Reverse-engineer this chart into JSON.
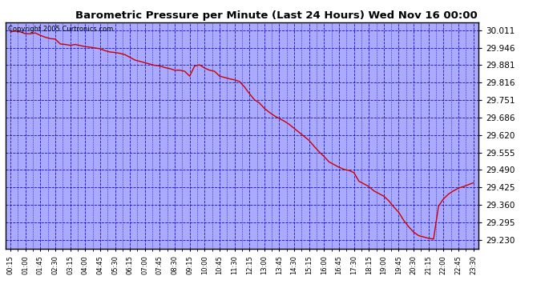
{
  "title": "Barometric Pressure per Minute (Last 24 Hours) Wed Nov 16 00:00",
  "copyright": "Copyright 2005 Curtronics.com",
  "yticks": [
    29.23,
    29.295,
    29.36,
    29.425,
    29.49,
    29.555,
    29.62,
    29.686,
    29.751,
    29.816,
    29.881,
    29.946,
    30.011
  ],
  "ylim": [
    29.195,
    30.04
  ],
  "plot_bg_color": "#aaaaff",
  "line_color": "#cc0000",
  "grid_color": "#0000cc",
  "xtick_labels": [
    "00:15",
    "01:00",
    "01:45",
    "02:30",
    "03:15",
    "04:00",
    "04:45",
    "05:30",
    "06:15",
    "07:00",
    "07:45",
    "08:30",
    "09:15",
    "10:00",
    "10:45",
    "11:30",
    "12:15",
    "13:00",
    "13:45",
    "14:30",
    "15:15",
    "16:00",
    "16:45",
    "17:30",
    "18:15",
    "19:00",
    "19:45",
    "20:30",
    "21:15",
    "22:00",
    "22:45",
    "23:30"
  ],
  "pressure_data": [
    [
      0.25,
      30.005
    ],
    [
      0.5,
      30.008
    ],
    [
      0.75,
      30.005
    ],
    [
      1.0,
      29.998
    ],
    [
      1.25,
      29.998
    ],
    [
      1.5,
      30.001
    ],
    [
      1.75,
      29.992
    ],
    [
      2.0,
      29.985
    ],
    [
      2.25,
      29.98
    ],
    [
      2.5,
      29.978
    ],
    [
      2.75,
      29.96
    ],
    [
      3.0,
      29.958
    ],
    [
      3.25,
      29.955
    ],
    [
      3.5,
      29.958
    ],
    [
      3.75,
      29.954
    ],
    [
      4.0,
      29.95
    ],
    [
      4.25,
      29.948
    ],
    [
      4.5,
      29.945
    ],
    [
      4.75,
      29.942
    ],
    [
      5.0,
      29.935
    ],
    [
      5.25,
      29.93
    ],
    [
      5.5,
      29.928
    ],
    [
      5.75,
      29.925
    ],
    [
      6.0,
      29.92
    ],
    [
      6.25,
      29.91
    ],
    [
      6.5,
      29.9
    ],
    [
      6.75,
      29.895
    ],
    [
      7.0,
      29.89
    ],
    [
      7.25,
      29.885
    ],
    [
      7.5,
      29.88
    ],
    [
      7.75,
      29.878
    ],
    [
      8.0,
      29.872
    ],
    [
      8.25,
      29.868
    ],
    [
      8.5,
      29.862
    ],
    [
      8.75,
      29.862
    ],
    [
      9.0,
      29.858
    ],
    [
      9.25,
      29.84
    ],
    [
      9.5,
      29.878
    ],
    [
      9.75,
      29.882
    ],
    [
      10.0,
      29.87
    ],
    [
      10.25,
      29.862
    ],
    [
      10.5,
      29.858
    ],
    [
      10.75,
      29.84
    ],
    [
      11.0,
      29.835
    ],
    [
      11.25,
      29.83
    ],
    [
      11.5,
      29.826
    ],
    [
      11.75,
      29.82
    ],
    [
      12.0,
      29.8
    ],
    [
      12.25,
      29.775
    ],
    [
      12.5,
      29.752
    ],
    [
      12.75,
      29.74
    ],
    [
      13.0,
      29.72
    ],
    [
      13.25,
      29.705
    ],
    [
      13.5,
      29.692
    ],
    [
      13.75,
      29.682
    ],
    [
      14.0,
      29.672
    ],
    [
      14.25,
      29.66
    ],
    [
      14.5,
      29.645
    ],
    [
      14.75,
      29.63
    ],
    [
      15.0,
      29.615
    ],
    [
      15.25,
      29.6
    ],
    [
      15.5,
      29.578
    ],
    [
      15.75,
      29.558
    ],
    [
      16.0,
      29.54
    ],
    [
      16.25,
      29.52
    ],
    [
      16.5,
      29.51
    ],
    [
      16.75,
      29.5
    ],
    [
      17.0,
      29.492
    ],
    [
      17.25,
      29.488
    ],
    [
      17.5,
      29.48
    ],
    [
      17.75,
      29.448
    ],
    [
      18.0,
      29.438
    ],
    [
      18.25,
      29.428
    ],
    [
      18.5,
      29.412
    ],
    [
      18.75,
      29.402
    ],
    [
      19.0,
      29.392
    ],
    [
      19.25,
      29.375
    ],
    [
      19.5,
      29.352
    ],
    [
      19.75,
      29.332
    ],
    [
      20.0,
      29.302
    ],
    [
      20.25,
      29.278
    ],
    [
      20.5,
      29.258
    ],
    [
      20.75,
      29.245
    ],
    [
      21.0,
      29.24
    ],
    [
      21.25,
      29.235
    ],
    [
      21.5,
      29.232
    ],
    [
      21.75,
      29.355
    ],
    [
      22.0,
      29.382
    ],
    [
      22.25,
      29.4
    ],
    [
      22.5,
      29.412
    ],
    [
      22.75,
      29.422
    ],
    [
      23.0,
      29.428
    ],
    [
      23.5,
      29.442
    ]
  ]
}
